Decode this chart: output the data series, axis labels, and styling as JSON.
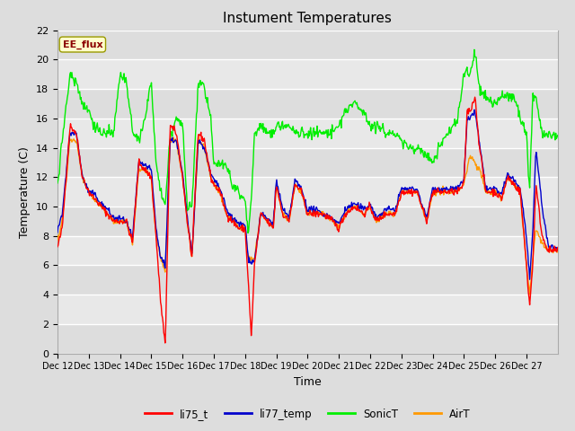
{
  "title": "Instument Temperatures",
  "ylabel": "Temperature (C)",
  "xlabel": "Time",
  "annotation": "EE_flux",
  "ylim": [
    0,
    22
  ],
  "figsize": [
    6.4,
    4.8
  ],
  "dpi": 100,
  "bg_color": "#dddddd",
  "plot_bg_color": "#e8e8e8",
  "grid_color": "#ffffff",
  "x_tick_labels": [
    "Dec 12",
    "Dec 13",
    "Dec 14",
    "Dec 15",
    "Dec 16",
    "Dec 17",
    "Dec 18",
    "Dec 19",
    "Dec 20",
    "Dec 21",
    "Dec 22",
    "Dec 23",
    "Dec 24",
    "Dec 25",
    "Dec 26",
    "Dec 27"
  ],
  "series_colors": {
    "li75_t": "#ff0000",
    "li77_temp": "#0000cc",
    "SonicT": "#00ee00",
    "AirT": "#ff9900"
  },
  "line_width": 1.0,
  "yticks": [
    0,
    2,
    4,
    6,
    8,
    10,
    12,
    14,
    16,
    18,
    20,
    22
  ]
}
